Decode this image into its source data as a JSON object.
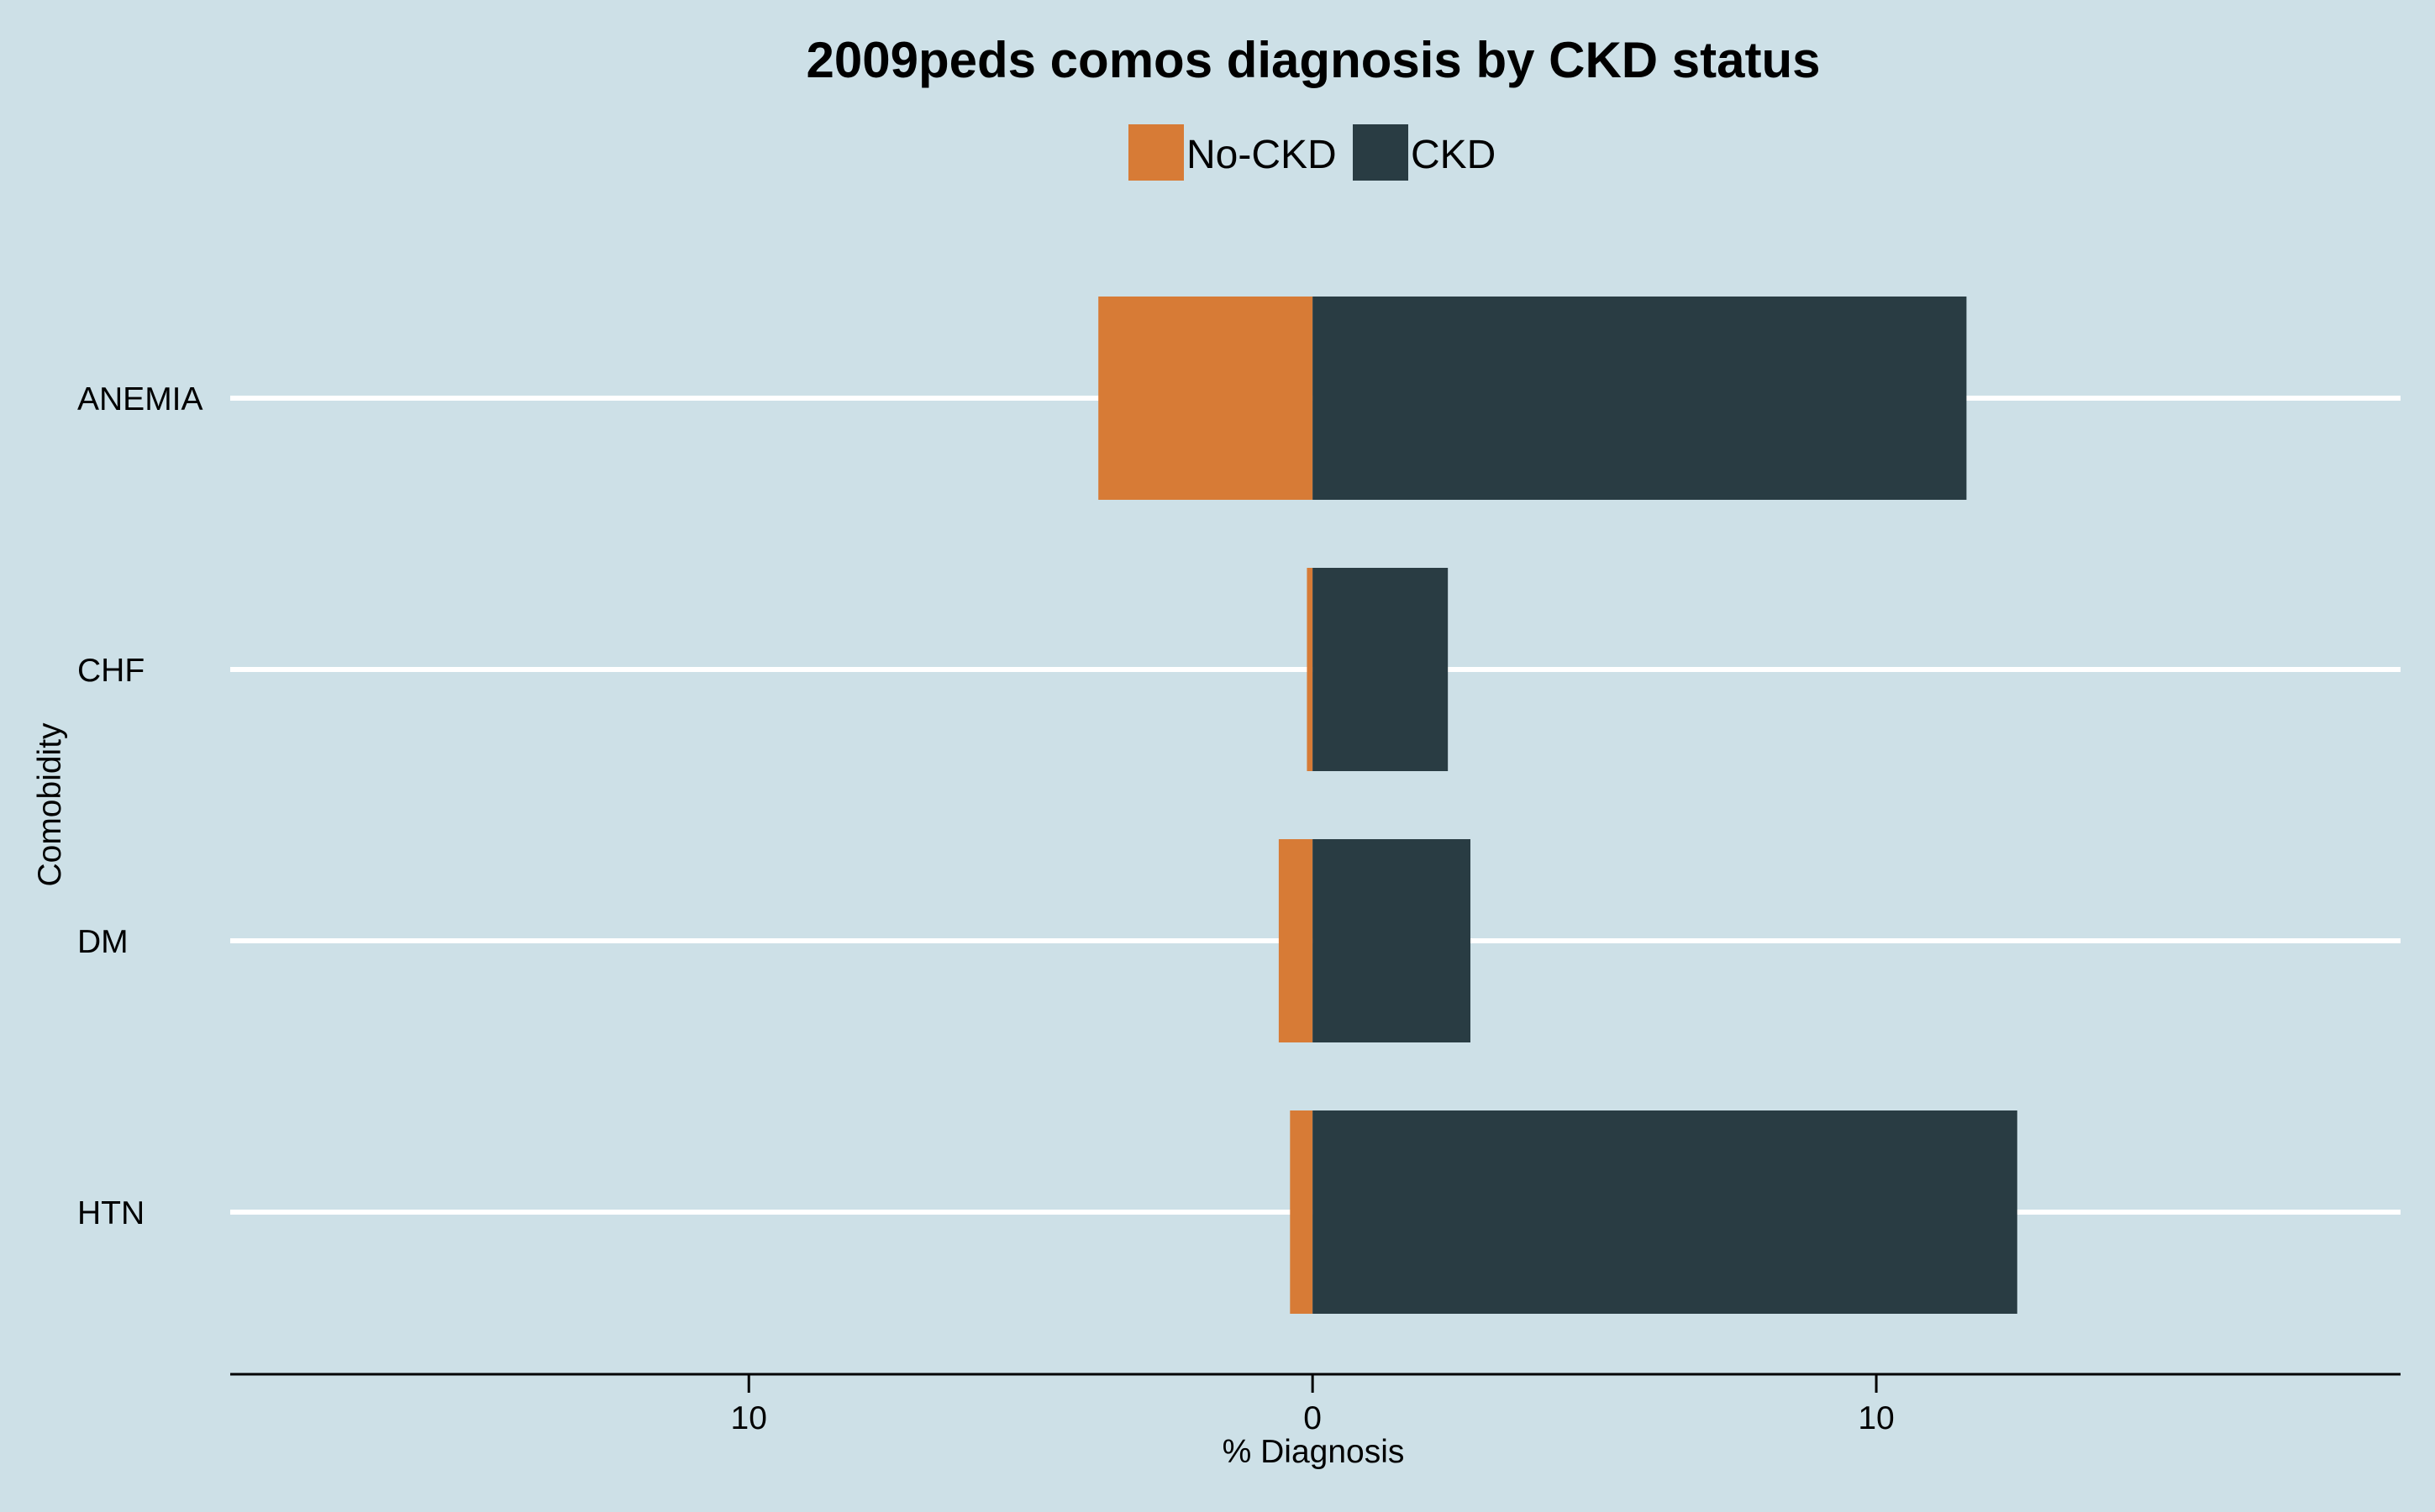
{
  "chart_data": {
    "type": "bar",
    "orientation": "horizontal",
    "stacking": "diverging",
    "title": "2009peds comos diagnosis by CKD status",
    "xlabel": "% Diagnosis",
    "ylabel": "Comobidity",
    "categories": [
      "ANEMIA",
      "CHF",
      "DM",
      "HTN"
    ],
    "series": [
      {
        "name": "No-CKD",
        "color": "#d77b36",
        "direction": "left",
        "values": [
          3.8,
          0.1,
          0.6,
          0.4
        ]
      },
      {
        "name": "CKD",
        "color": "#293c43",
        "direction": "right",
        "values": [
          11.6,
          2.4,
          2.8,
          12.5
        ]
      }
    ],
    "xlim": [
      -19.2,
      19.3
    ],
    "xticks": [
      {
        "value": -10,
        "label": "10"
      },
      {
        "value": 0,
        "label": "0"
      },
      {
        "value": 10,
        "label": "10"
      }
    ],
    "grid": "horizontal-major",
    "legend_position": "top",
    "background_color": "#cde0e7",
    "grid_color": "#ffffff"
  }
}
